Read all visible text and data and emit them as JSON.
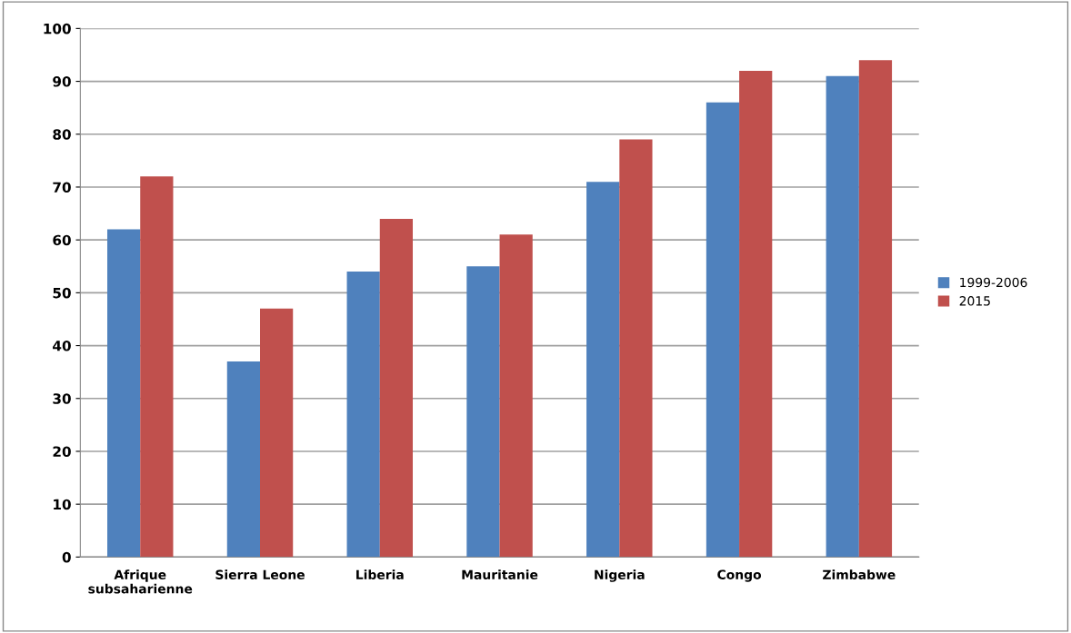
{
  "chart_data": {
    "type": "bar",
    "categories": [
      "Afrique\nsubsaharienne",
      "Sierra Leone",
      "Liberia",
      "Mauritanie",
      "Nigeria",
      "Congo",
      "Zimbabwe"
    ],
    "series": [
      {
        "name": "1999-2006",
        "color": "#4f81bd",
        "values": [
          62,
          37,
          54,
          55,
          71,
          86,
          91
        ]
      },
      {
        "name": "2015",
        "color": "#c0504d",
        "values": [
          72,
          47,
          64,
          61,
          79,
          92,
          94
        ]
      }
    ],
    "ylim": [
      0,
      100
    ],
    "yticks": [
      0,
      10,
      20,
      30,
      40,
      50,
      60,
      70,
      80,
      90,
      100
    ],
    "grid": "y",
    "legend": "right"
  }
}
